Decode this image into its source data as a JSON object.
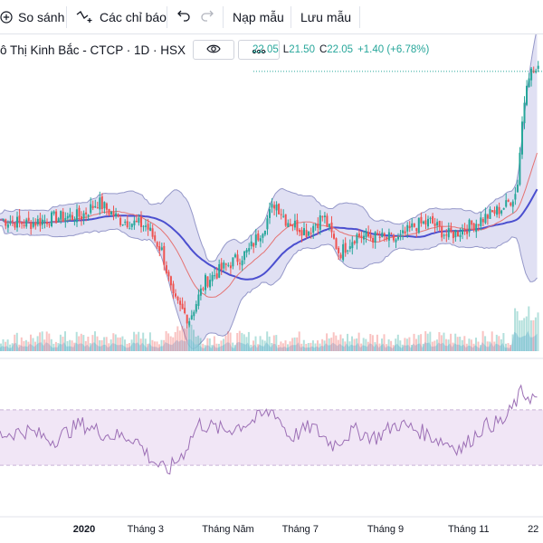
{
  "toolbar": {
    "compare_label": "So sánh",
    "indicators_label": "Các chỉ báo",
    "load_template_label": "Nạp mẫu",
    "save_template_label": "Lưu mẫu"
  },
  "legend": {
    "title": "ô Thị Kinh Bắc - CTCP · 1D · HSX",
    "ohlc_parts": [
      {
        "key": "",
        "value": "22.05"
      },
      {
        "key": "L",
        "value": "21.50"
      },
      {
        "key": "C",
        "value": "22.05"
      },
      {
        "key": "",
        "value": "+1.40 (+6.78%)"
      }
    ]
  },
  "colors": {
    "up": "#26a69a",
    "down": "#ef5350",
    "bollinger_fill": "#d6d6ef",
    "bollinger_line": "#9598c9",
    "ma_slow": "#4b4fcf",
    "ma_fast": "#e57373",
    "rsi_band": "#f1e6f6",
    "rsi_line": "#9c6fb5",
    "volume_area": "#b6d7f0"
  },
  "chart_data": {
    "type": "line",
    "description": "Daily candlestick price with Bollinger Bands, moving averages, volume and RSI",
    "x_axis_labels": [
      "2020",
      "Tháng 3",
      "Tháng Năm",
      "Tháng 7",
      "Tháng 9",
      "Tháng 11",
      "22"
    ],
    "x_axis_label_positions": [
      0.155,
      0.268,
      0.42,
      0.553,
      0.71,
      0.863,
      0.982
    ],
    "price_approx_path": [
      [
        0.0,
        14.6
      ],
      [
        0.05,
        14.4
      ],
      [
        0.1,
        14.7
      ],
      [
        0.15,
        14.8
      ],
      [
        0.18,
        15.5
      ],
      [
        0.22,
        14.6
      ],
      [
        0.27,
        14.3
      ],
      [
        0.3,
        13.0
      ],
      [
        0.32,
        10.6
      ],
      [
        0.35,
        9.6
      ],
      [
        0.38,
        11.5
      ],
      [
        0.42,
        12.3
      ],
      [
        0.46,
        13.0
      ],
      [
        0.49,
        14.3
      ],
      [
        0.51,
        15.5
      ],
      [
        0.53,
        14.6
      ],
      [
        0.57,
        14.0
      ],
      [
        0.6,
        14.8
      ],
      [
        0.63,
        12.9
      ],
      [
        0.66,
        13.8
      ],
      [
        0.7,
        13.7
      ],
      [
        0.74,
        13.6
      ],
      [
        0.77,
        14.3
      ],
      [
        0.8,
        14.5
      ],
      [
        0.83,
        13.8
      ],
      [
        0.86,
        14.1
      ],
      [
        0.9,
        14.7
      ],
      [
        0.94,
        15.3
      ],
      [
        0.96,
        16.0
      ],
      [
        0.97,
        19.5
      ],
      [
        0.98,
        22.0
      ],
      [
        0.995,
        22.05
      ]
    ],
    "last": {
      "high": "22.05",
      "low": "21.50",
      "close": "22.05",
      "change": "+1.40",
      "change_pct": "+6.78%"
    },
    "rsi_band": [
      30,
      70
    ],
    "rsi_approx_path": [
      [
        0.0,
        52
      ],
      [
        0.05,
        55
      ],
      [
        0.1,
        48
      ],
      [
        0.15,
        60
      ],
      [
        0.2,
        52
      ],
      [
        0.25,
        50
      ],
      [
        0.28,
        35
      ],
      [
        0.31,
        25
      ],
      [
        0.34,
        38
      ],
      [
        0.37,
        60
      ],
      [
        0.42,
        55
      ],
      [
        0.47,
        62
      ],
      [
        0.51,
        70
      ],
      [
        0.54,
        50
      ],
      [
        0.58,
        58
      ],
      [
        0.62,
        45
      ],
      [
        0.66,
        55
      ],
      [
        0.7,
        50
      ],
      [
        0.74,
        60
      ],
      [
        0.78,
        55
      ],
      [
        0.82,
        48
      ],
      [
        0.86,
        42
      ],
      [
        0.9,
        58
      ],
      [
        0.94,
        62
      ],
      [
        0.97,
        82
      ],
      [
        1.0,
        78
      ]
    ]
  }
}
